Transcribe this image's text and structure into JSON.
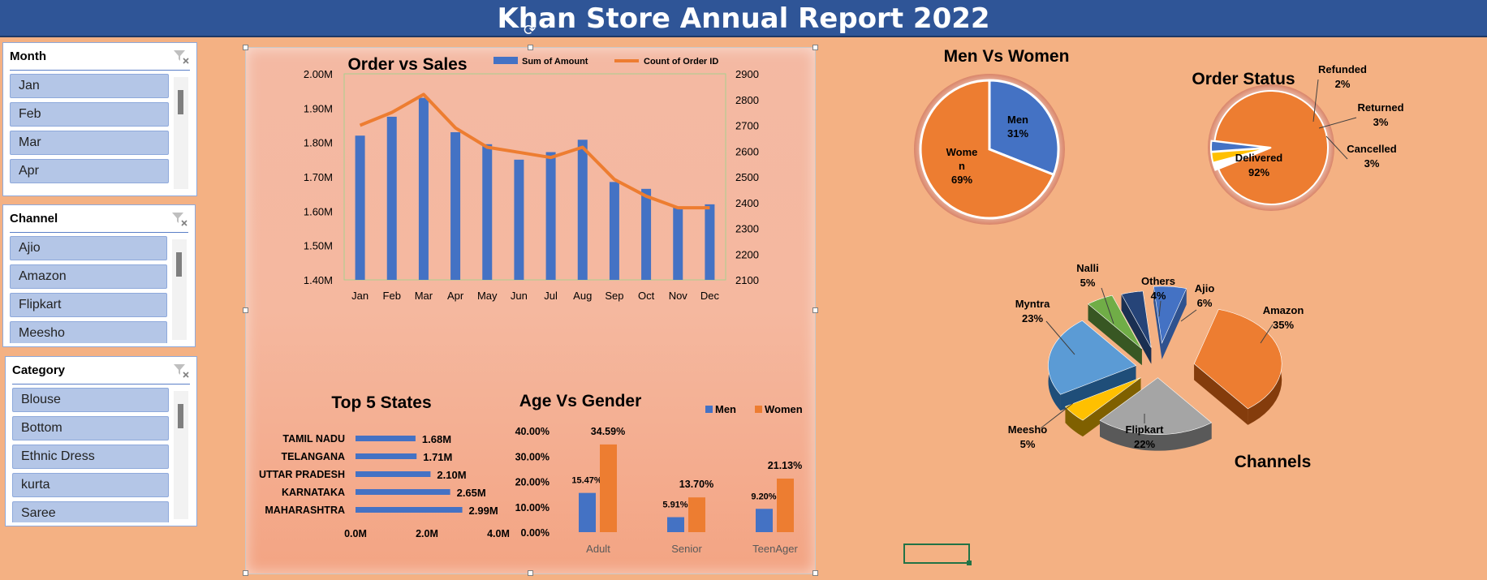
{
  "header": {
    "title": "Khan Store Annual Report 2022"
  },
  "slicers": [
    {
      "title": "Month",
      "items": [
        "Jan",
        "Feb",
        "Mar",
        "Apr"
      ]
    },
    {
      "title": "Channel",
      "items": [
        "Ajio",
        "Amazon",
        "Flipkart",
        "Meesho"
      ]
    },
    {
      "title": "Category",
      "items": [
        "Blouse",
        "Bottom",
        "Ethnic Dress",
        "kurta",
        "Saree"
      ]
    }
  ],
  "colors": {
    "blue": "#4472c4",
    "orange": "#ed7d31",
    "header": "#2f5597",
    "background": "#f4b183"
  },
  "chart_data": [
    {
      "type": "bar",
      "title": "Order vs Sales",
      "categories": [
        "Jan",
        "Feb",
        "Mar",
        "Apr",
        "May",
        "Jun",
        "Jul",
        "Aug",
        "Sep",
        "Oct",
        "Nov",
        "Dec"
      ],
      "series": [
        {
          "name": "Sum of Amount",
          "type": "bar",
          "axis": "left",
          "values": [
            1.82,
            1.875,
            1.93,
            1.83,
            1.795,
            1.75,
            1.772,
            1.808,
            1.685,
            1.665,
            1.61,
            1.62
          ]
        },
        {
          "name": "Count of Order ID",
          "type": "line",
          "axis": "right",
          "values": [
            2700,
            2750,
            2820,
            2690,
            2615,
            2595,
            2575,
            2615,
            2490,
            2425,
            2380,
            2380
          ]
        }
      ],
      "y_left": {
        "ylim": [
          1.4,
          2.0
        ],
        "ticks": [
          "1.40M",
          "1.50M",
          "1.60M",
          "1.70M",
          "1.80M",
          "1.90M",
          "2.00M"
        ]
      },
      "y_right": {
        "ylim": [
          2100,
          2900
        ],
        "ticks": [
          "2100",
          "2200",
          "2300",
          "2400",
          "2500",
          "2600",
          "2700",
          "2800",
          "2900"
        ]
      },
      "legend": "top"
    },
    {
      "type": "pie",
      "title": "Men Vs Women",
      "slices": [
        {
          "label": "Men",
          "value": 31,
          "display": "31%"
        },
        {
          "label": "Wome\nn",
          "value": 69,
          "display": "69%"
        }
      ]
    },
    {
      "type": "pie",
      "title": "Order Status",
      "slices": [
        {
          "label": "Delivered",
          "value": 92,
          "display": "92%"
        },
        {
          "label": "Refunded",
          "value": 2,
          "display": "2%"
        },
        {
          "label": "Returned",
          "value": 3,
          "display": "3%"
        },
        {
          "label": "Cancelled",
          "value": 3,
          "display": "3%"
        }
      ]
    },
    {
      "type": "pie",
      "title": "Channels",
      "slices": [
        {
          "label": "Amazon",
          "value": 35,
          "display": "35%"
        },
        {
          "label": "Flipkart",
          "value": 22,
          "display": "22%"
        },
        {
          "label": "Meesho",
          "value": 5,
          "display": "5%"
        },
        {
          "label": "Myntra",
          "value": 23,
          "display": "23%"
        },
        {
          "label": "Nalli",
          "value": 5,
          "display": "5%"
        },
        {
          "label": "Others",
          "value": 4,
          "display": "4%"
        },
        {
          "label": "Ajio",
          "value": 6,
          "display": "6%"
        }
      ]
    },
    {
      "type": "bar",
      "orientation": "horizontal",
      "title": "Top 5 States",
      "categories": [
        "TAMIL NADU",
        "TELANGANA",
        "UTTAR PRADESH",
        "KARNATAKA",
        "MAHARASHTRA"
      ],
      "values": [
        1.68,
        1.71,
        2.1,
        2.65,
        2.99
      ],
      "data_labels": [
        "1.68M",
        "1.71M",
        "2.10M",
        "2.65M",
        "2.99M"
      ],
      "xlim": [
        0,
        4
      ],
      "ticks": [
        "0.0M",
        "2.0M",
        "4.0M"
      ]
    },
    {
      "type": "bar",
      "title": "Age Vs Gender",
      "categories": [
        "Adult",
        "Senior",
        "TeenAger"
      ],
      "series": [
        {
          "name": "Men",
          "values": [
            15.47,
            5.91,
            9.2
          ],
          "labels": [
            "15.47%",
            "5.91%",
            "9.20%"
          ]
        },
        {
          "name": "Women",
          "values": [
            34.59,
            13.7,
            21.13
          ],
          "labels": [
            "34.59%",
            "13.70%",
            "21.13%"
          ]
        }
      ],
      "ylim": [
        0,
        40
      ],
      "ticks": [
        "0.00%",
        "10.00%",
        "20.00%",
        "30.00%",
        "40.00%"
      ],
      "legend": "top-right"
    }
  ]
}
